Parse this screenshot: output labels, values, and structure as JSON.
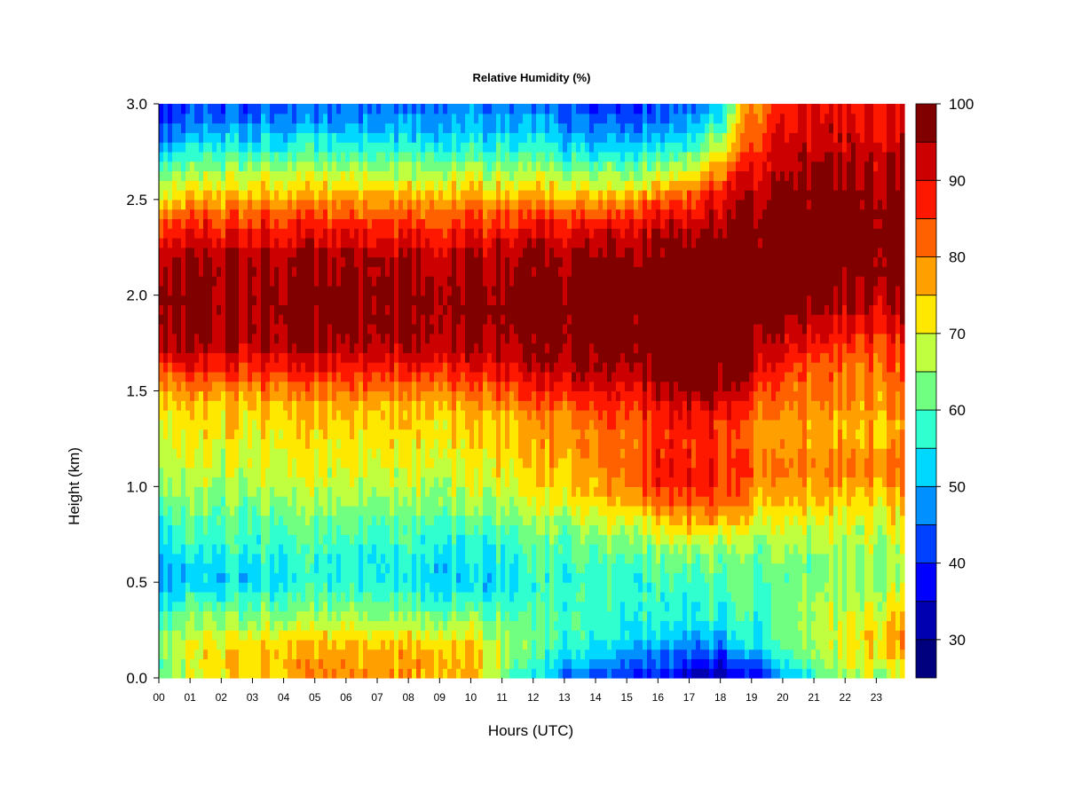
{
  "chart_data": {
    "type": "heatmap",
    "title": "Relative Humidity (%)",
    "xlabel": "Hours (UTC)",
    "ylabel": "Height (km)",
    "x_ticks": [
      "00",
      "01",
      "02",
      "03",
      "04",
      "05",
      "06",
      "07",
      "08",
      "09",
      "10",
      "11",
      "12",
      "13",
      "14",
      "15",
      "16",
      "17",
      "18",
      "19",
      "20",
      "21",
      "22",
      "23"
    ],
    "y_ticks": [
      "0.0",
      "0.5",
      "1.0",
      "1.5",
      "2.0",
      "2.5",
      "3.0"
    ],
    "xlim": [
      0,
      23.9
    ],
    "ylim": [
      0,
      3.0
    ],
    "colorbar": {
      "levels": [
        25,
        30,
        35,
        40,
        45,
        50,
        55,
        60,
        65,
        70,
        75,
        80,
        85,
        90,
        95,
        100
      ],
      "colors": [
        "#00007F",
        "#0000B0",
        "#0000FF",
        "#0040FF",
        "#0090FF",
        "#00D8FF",
        "#30FFD0",
        "#70FF80",
        "#C0FF40",
        "#FFE800",
        "#FFA000",
        "#FF6000",
        "#FF1800",
        "#CC0000",
        "#800000"
      ],
      "tick_labels": [
        "30",
        "40",
        "50",
        "60",
        "70",
        "80",
        "90",
        "100"
      ],
      "tick_values": [
        30,
        40,
        50,
        60,
        70,
        80,
        90,
        100
      ]
    },
    "heights_km": [
      0.0,
      0.1,
      0.2,
      0.3,
      0.4,
      0.5,
      0.6,
      0.7,
      0.8,
      0.9,
      1.0,
      1.1,
      1.2,
      1.3,
      1.4,
      1.5,
      1.6,
      1.7,
      1.8,
      1.9,
      2.0,
      2.1,
      2.2,
      2.3,
      2.4,
      2.5,
      2.6,
      2.7,
      2.8,
      2.9,
      3.0
    ],
    "hours_utc": [
      0,
      2,
      4,
      6,
      8,
      10,
      12,
      14,
      16,
      17,
      18,
      19,
      20,
      21,
      22,
      23.9
    ],
    "values": [
      [
        62,
        72,
        76,
        78,
        78,
        76,
        52,
        42,
        38,
        33,
        30,
        35,
        48,
        56,
        65,
        66
      ],
      [
        64,
        74,
        76,
        78,
        78,
        77,
        58,
        50,
        45,
        43,
        40,
        46,
        57,
        62,
        70,
        74
      ],
      [
        66,
        72,
        73,
        74,
        74,
        72,
        62,
        56,
        52,
        50,
        50,
        55,
        62,
        65,
        70,
        78
      ],
      [
        62,
        65,
        65,
        66,
        66,
        65,
        60,
        58,
        56,
        56,
        56,
        58,
        63,
        65,
        68,
        75
      ],
      [
        56,
        60,
        60,
        62,
        60,
        58,
        58,
        58,
        57,
        57,
        58,
        60,
        62,
        64,
        66,
        70
      ],
      [
        50,
        52,
        55,
        57,
        55,
        52,
        56,
        58,
        58,
        58,
        60,
        60,
        62,
        62,
        64,
        66
      ],
      [
        52,
        54,
        56,
        56,
        55,
        54,
        58,
        60,
        60,
        62,
        63,
        62,
        64,
        62,
        64,
        66
      ],
      [
        56,
        58,
        58,
        58,
        58,
        56,
        60,
        62,
        65,
        68,
        66,
        64,
        66,
        64,
        66,
        68
      ],
      [
        58,
        60,
        60,
        60,
        60,
        60,
        63,
        66,
        72,
        76,
        74,
        70,
        70,
        68,
        68,
        70
      ],
      [
        62,
        63,
        64,
        64,
        64,
        64,
        68,
        72,
        80,
        84,
        82,
        76,
        74,
        72,
        72,
        74
      ],
      [
        66,
        66,
        67,
        67,
        67,
        68,
        72,
        76,
        86,
        88,
        86,
        80,
        78,
        76,
        76,
        78
      ],
      [
        68,
        68,
        69,
        69,
        70,
        70,
        74,
        78,
        88,
        90,
        88,
        84,
        82,
        80,
        80,
        82
      ],
      [
        70,
        70,
        71,
        71,
        72,
        72,
        75,
        80,
        86,
        88,
        86,
        80,
        78,
        77,
        77,
        78
      ],
      [
        72,
        72,
        73,
        73,
        73,
        74,
        76,
        80,
        85,
        88,
        86,
        80,
        78,
        76,
        76,
        76
      ],
      [
        74,
        74,
        75,
        75,
        75,
        76,
        80,
        84,
        88,
        92,
        90,
        84,
        80,
        78,
        78,
        78
      ],
      [
        78,
        79,
        80,
        80,
        80,
        82,
        86,
        90,
        92,
        98,
        97,
        88,
        82,
        80,
        80,
        80
      ],
      [
        86,
        86,
        87,
        87,
        87,
        88,
        92,
        94,
        97,
        99,
        98,
        94,
        86,
        82,
        82,
        82
      ],
      [
        94,
        92,
        93,
        93,
        93,
        94,
        96,
        97,
        99,
        100,
        100,
        97,
        90,
        86,
        84,
        84
      ],
      [
        97,
        96,
        96,
        96,
        96,
        96,
        97,
        98,
        100,
        100,
        100,
        99,
        94,
        90,
        88,
        88
      ],
      [
        98,
        97,
        97,
        97,
        97,
        97,
        98,
        99,
        100,
        100,
        100,
        100,
        97,
        94,
        92,
        92
      ],
      [
        98,
        97,
        97,
        97,
        97,
        97,
        98,
        99,
        100,
        100,
        100,
        100,
        99,
        97,
        95,
        95
      ],
      [
        97,
        96,
        96,
        96,
        96,
        96,
        97,
        98,
        99,
        100,
        100,
        100,
        100,
        99,
        98,
        98
      ],
      [
        96,
        95,
        95,
        95,
        95,
        95,
        96,
        97,
        98,
        99,
        100,
        100,
        100,
        100,
        99,
        99
      ],
      [
        90,
        90,
        90,
        90,
        90,
        90,
        91,
        92,
        95,
        97,
        98,
        99,
        100,
        100,
        100,
        99
      ],
      [
        84,
        85,
        85,
        85,
        85,
        85,
        86,
        86,
        90,
        92,
        94,
        97,
        99,
        99,
        99,
        98
      ],
      [
        74,
        78,
        78,
        78,
        78,
        78,
        78,
        76,
        82,
        86,
        90,
        95,
        98,
        98,
        98,
        97
      ],
      [
        66,
        70,
        70,
        70,
        70,
        70,
        70,
        66,
        70,
        76,
        84,
        92,
        96,
        96,
        96,
        96
      ],
      [
        58,
        62,
        62,
        62,
        62,
        62,
        62,
        58,
        60,
        66,
        76,
        88,
        94,
        94,
        94,
        94
      ],
      [
        50,
        54,
        54,
        55,
        55,
        55,
        55,
        50,
        52,
        56,
        66,
        84,
        92,
        92,
        92,
        92
      ],
      [
        44,
        47,
        48,
        48,
        49,
        50,
        50,
        44,
        46,
        50,
        58,
        82,
        90,
        90,
        90,
        90
      ],
      [
        40,
        42,
        44,
        44,
        45,
        46,
        46,
        40,
        40,
        45,
        52,
        80,
        88,
        88,
        88,
        88
      ]
    ]
  }
}
